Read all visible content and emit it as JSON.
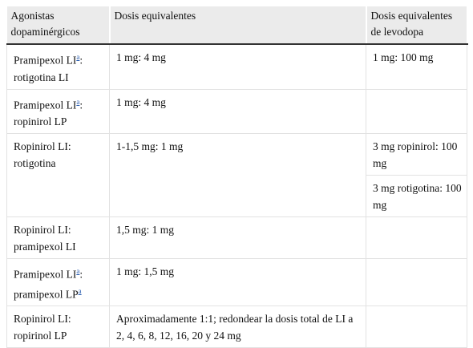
{
  "table": {
    "header": [
      "Agonistas dopaminérgicos",
      "Dosis equivalentes",
      "Dosis equivalentes de levodopa"
    ],
    "rows": [
      {
        "drug": [
          "Pramipexol LI",
          "a",
          ": rotigotina LI"
        ],
        "dose": "1 mg: 4 mg",
        "levodopa": [
          "1 mg: 100 mg"
        ]
      },
      {
        "drug": [
          "Pramipexol LI",
          "a",
          ": ropinirol LP"
        ],
        "dose": "1 mg: 4 mg",
        "levodopa": []
      },
      {
        "drug": [
          "Ropinirol LI: rotigotina"
        ],
        "dose": "1-1,5 mg: 1 mg",
        "levodopa": [
          "3 mg ropinirol: 100 mg",
          "3 mg rotigotina: 100 mg"
        ]
      },
      {
        "drug": [
          "Ropinirol LI: pramipexol LI"
        ],
        "dose": "1,5 mg: 1 mg",
        "levodopa": []
      },
      {
        "drug": [
          "Pramipexol LI",
          "a",
          ": pramipexol LP",
          "a"
        ],
        "dose": "1 mg: 1,5 mg",
        "levodopa": []
      },
      {
        "drug": [
          "Ropinirol LI: ropirinol LP"
        ],
        "dose": "Aproximadamente 1:1; redondear la dosis total de LI a 2, 4, 6, 8, 12, 16, 20 y 24 mg",
        "levodopa": []
      }
    ]
  }
}
